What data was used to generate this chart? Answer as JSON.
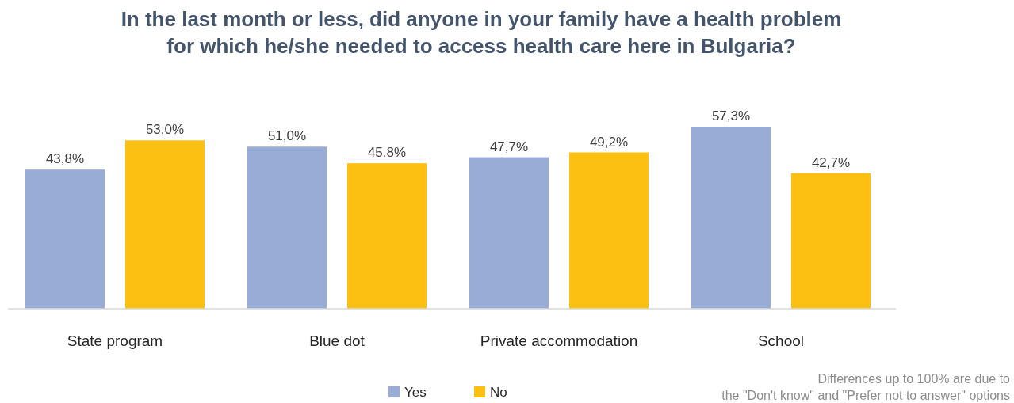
{
  "chart_data": {
    "type": "bar",
    "title": "In the last month or less, did anyone in your family have a health problem\nfor which he/she needed to access health care here in Bulgaria?",
    "categories": [
      "State program",
      "Blue dot",
      "Private accommodation",
      "School"
    ],
    "series": [
      {
        "name": "Yes",
        "color": "#98acd6",
        "values": [
          43.8,
          51.0,
          47.7,
          57.3
        ],
        "value_labels": [
          "43,8%",
          "51,0%",
          "47,7%",
          "57,3%"
        ]
      },
      {
        "name": "No",
        "color": "#fcc012",
        "values": [
          53.0,
          45.8,
          49.2,
          42.7
        ],
        "value_labels": [
          "53,0%",
          "45,8%",
          "49,2%",
          "42,7%"
        ]
      }
    ],
    "legend": "bottom",
    "annotations": [
      "Differences up to 100% are due to\nthe \"Don't know\" and \"Prefer not to answer\" options"
    ]
  }
}
